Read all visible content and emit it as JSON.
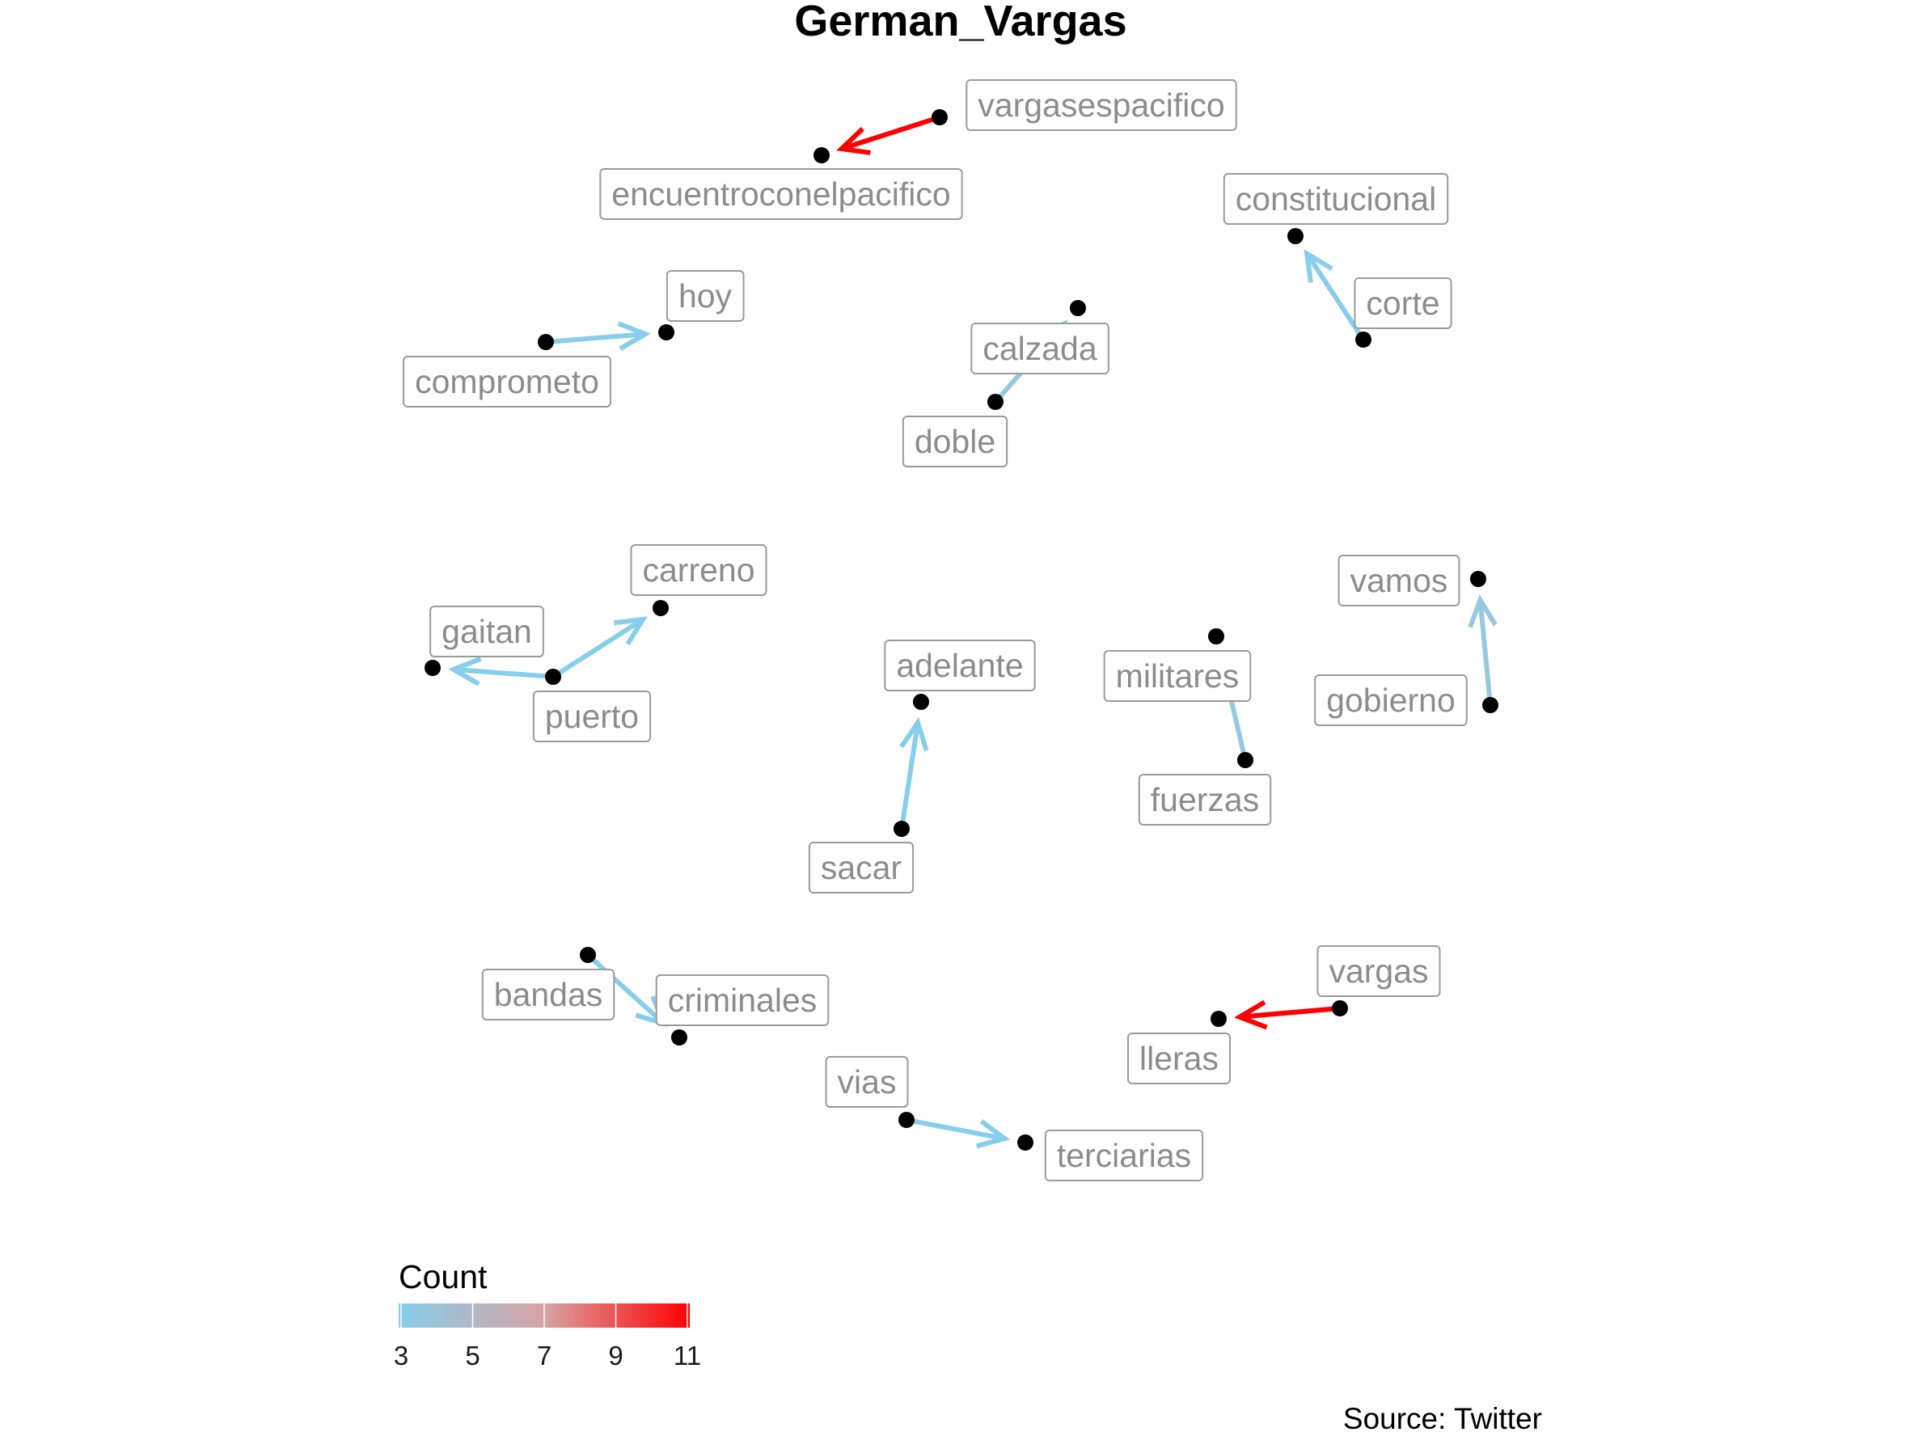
{
  "title": "German_Vargas",
  "caption": "Source: Twitter",
  "legend": {
    "title": "Count",
    "ticks": [
      "3",
      "5",
      "7",
      "9",
      "11"
    ],
    "min": 3,
    "max": 11,
    "colors": [
      "#87CEEB",
      "#FF0000"
    ]
  },
  "nodes": [
    {
      "id": "vargasespacifico",
      "label": "vargasespacifico"
    },
    {
      "id": "encuentroconelpacifico",
      "label": "encuentroconelpacifico"
    },
    {
      "id": "constitucional",
      "label": "constitucional"
    },
    {
      "id": "corte",
      "label": "corte"
    },
    {
      "id": "hoy",
      "label": "hoy"
    },
    {
      "id": "comprometo",
      "label": "comprometo"
    },
    {
      "id": "calzada",
      "label": "calzada"
    },
    {
      "id": "doble",
      "label": "doble"
    },
    {
      "id": "carreno",
      "label": "carreno"
    },
    {
      "id": "gaitan",
      "label": "gaitan"
    },
    {
      "id": "puerto",
      "label": "puerto"
    },
    {
      "id": "adelante",
      "label": "adelante"
    },
    {
      "id": "sacar",
      "label": "sacar"
    },
    {
      "id": "militares",
      "label": "militares"
    },
    {
      "id": "fuerzas",
      "label": "fuerzas"
    },
    {
      "id": "vamos",
      "label": "vamos"
    },
    {
      "id": "gobierno",
      "label": "gobierno"
    },
    {
      "id": "bandas",
      "label": "bandas"
    },
    {
      "id": "criminales",
      "label": "criminales"
    },
    {
      "id": "vargas",
      "label": "vargas"
    },
    {
      "id": "lleras",
      "label": "lleras"
    },
    {
      "id": "vias",
      "label": "vias"
    },
    {
      "id": "terciarias",
      "label": "terciarias"
    }
  ],
  "edges": [
    {
      "from": "vargasespacifico",
      "to": "encuentroconelpacifico",
      "count": 11
    },
    {
      "from": "corte",
      "to": "constitucional",
      "count": 3
    },
    {
      "from": "comprometo",
      "to": "hoy",
      "count": 3
    },
    {
      "from": "doble",
      "to": "calzada",
      "count": 4.5
    },
    {
      "from": "puerto",
      "to": "carreno",
      "count": 3
    },
    {
      "from": "puerto",
      "to": "gaitan",
      "count": 3
    },
    {
      "from": "sacar",
      "to": "adelante",
      "count": 3
    },
    {
      "from": "fuerzas",
      "to": "militares",
      "count": 4.5
    },
    {
      "from": "gobierno",
      "to": "vamos",
      "count": 4.5
    },
    {
      "from": "bandas",
      "to": "criminales",
      "count": 3
    },
    {
      "from": "vargas",
      "to": "lleras",
      "count": 11
    },
    {
      "from": "vias",
      "to": "terciarias",
      "count": 3
    }
  ]
}
